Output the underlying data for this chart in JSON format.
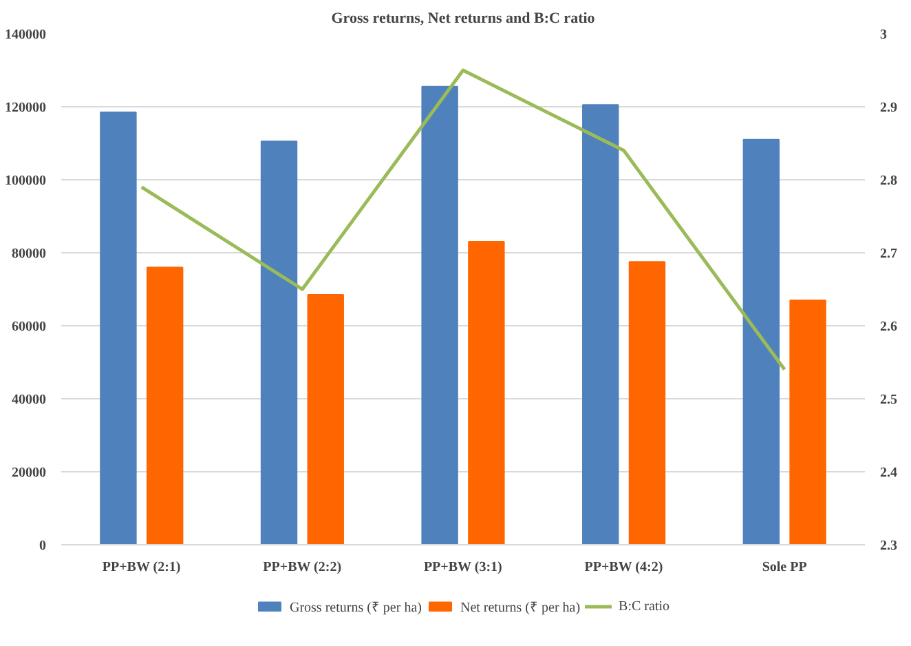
{
  "chart_data": {
    "type": "bar",
    "title": "Gross returns, Net returns and B:C ratio",
    "categories": [
      "PP+BW (2:1)",
      "PP+BW (2:2)",
      "PP+BW (3:1)",
      "PP+BW (4:2)",
      "Sole PP"
    ],
    "series": [
      {
        "name": "Gross returns (₹ per ha)",
        "color": "#4f81bd",
        "values": [
          118500,
          110500,
          125500,
          120500,
          111000
        ]
      },
      {
        "name": "Net returns (₹ per ha)",
        "color": "#ff6600",
        "values": [
          76000,
          68500,
          83000,
          77500,
          67000
        ]
      },
      {
        "name": "B:C ratio",
        "color": "#9bbb59",
        "type": "line",
        "axis": "y2",
        "values": [
          2.79,
          2.65,
          2.95,
          2.84,
          2.54
        ]
      }
    ],
    "ylim": [
      0,
      140000
    ],
    "yticks": [
      0,
      20000,
      40000,
      60000,
      80000,
      100000,
      120000,
      140000
    ],
    "y2lim": [
      2.3,
      3
    ],
    "y2ticks": [
      2.3,
      2.4,
      2.5,
      2.6,
      2.7,
      2.8,
      2.9,
      3
    ],
    "grid": "y",
    "legend": "bottom",
    "marker": "none"
  }
}
